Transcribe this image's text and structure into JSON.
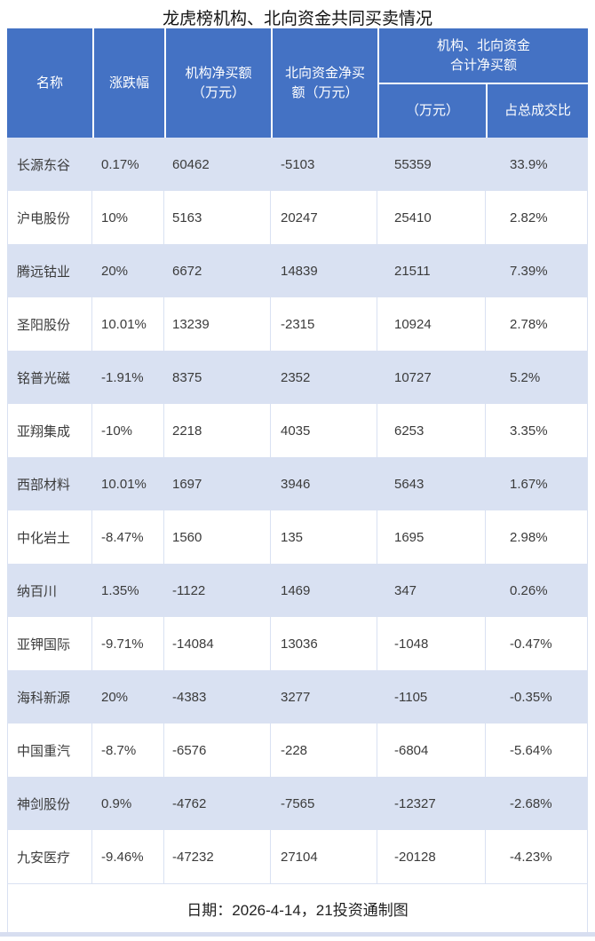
{
  "title": "龙虎榜机构、北向资金共同买卖情况",
  "table": {
    "columns": {
      "name": "名称",
      "change": "涨跌幅",
      "inst_net": "机构净买额\n（万元）",
      "north_net": "北向资金净买\n额（万元）",
      "combined_group": "机构、北向资金\n合计净买额",
      "combined_wan": "（万元）",
      "combined_pct": "占总成交比"
    },
    "rows": [
      {
        "name": "长源东谷",
        "change": "0.17%",
        "inst_net": "60462",
        "north_net": "-5103",
        "combined": "55359",
        "pct": "33.9%"
      },
      {
        "name": "沪电股份",
        "change": "10%",
        "inst_net": "5163",
        "north_net": "20247",
        "combined": "25410",
        "pct": "2.82%"
      },
      {
        "name": "腾远钴业",
        "change": "20%",
        "inst_net": "6672",
        "north_net": "14839",
        "combined": "21511",
        "pct": "7.39%"
      },
      {
        "name": "圣阳股份",
        "change": "10.01%",
        "inst_net": "13239",
        "north_net": "-2315",
        "combined": "10924",
        "pct": "2.78%"
      },
      {
        "name": "铭普光磁",
        "change": "-1.91%",
        "inst_net": "8375",
        "north_net": "2352",
        "combined": "10727",
        "pct": "5.2%"
      },
      {
        "name": "亚翔集成",
        "change": "-10%",
        "inst_net": "2218",
        "north_net": "4035",
        "combined": "6253",
        "pct": "3.35%"
      },
      {
        "name": "西部材料",
        "change": "10.01%",
        "inst_net": "1697",
        "north_net": "3946",
        "combined": "5643",
        "pct": "1.67%"
      },
      {
        "name": "中化岩土",
        "change": "-8.47%",
        "inst_net": "1560",
        "north_net": "135",
        "combined": "1695",
        "pct": "2.98%"
      },
      {
        "name": "纳百川",
        "change": "1.35%",
        "inst_net": "-1122",
        "north_net": "1469",
        "combined": "347",
        "pct": "0.26%"
      },
      {
        "name": "亚钾国际",
        "change": "-9.71%",
        "inst_net": "-14084",
        "north_net": "13036",
        "combined": "-1048",
        "pct": "-0.47%"
      },
      {
        "name": "海科新源",
        "change": "20%",
        "inst_net": "-4383",
        "north_net": "3277",
        "combined": "-1105",
        "pct": "-0.35%"
      },
      {
        "name": "中国重汽",
        "change": "-8.7%",
        "inst_net": "-6576",
        "north_net": "-228",
        "combined": "-6804",
        "pct": "-5.64%"
      },
      {
        "name": "神剑股份",
        "change": "0.9%",
        "inst_net": "-4762",
        "north_net": "-7565",
        "combined": "-12327",
        "pct": "-2.68%"
      },
      {
        "name": "九安医疗",
        "change": "-9.46%",
        "inst_net": "-47232",
        "north_net": "27104",
        "combined": "-20128",
        "pct": "-4.23%"
      }
    ]
  },
  "footer": "日期：2026-4-14，21投资通制图",
  "colors": {
    "header_bg": "#4472C4",
    "band_bg": "#D9E1F2",
    "header_text": "#FFFFFF",
    "body_text": "#3B3B3B"
  },
  "chart_data": {
    "type": "table",
    "title": "龙虎榜机构、北向资金共同买卖情况",
    "columns": [
      "名称",
      "涨跌幅",
      "机构净买额（万元）",
      "北向资金净买额（万元）",
      "机构、北向资金合计净买额（万元）",
      "机构、北向资金合计净买额占总成交比"
    ],
    "rows": [
      [
        "长源东谷",
        "0.17%",
        60462,
        -5103,
        55359,
        "33.9%"
      ],
      [
        "沪电股份",
        "10%",
        5163,
        20247,
        25410,
        "2.82%"
      ],
      [
        "腾远钴业",
        "20%",
        6672,
        14839,
        21511,
        "7.39%"
      ],
      [
        "圣阳股份",
        "10.01%",
        13239,
        -2315,
        10924,
        "2.78%"
      ],
      [
        "铭普光磁",
        "-1.91%",
        8375,
        2352,
        10727,
        "5.2%"
      ],
      [
        "亚翔集成",
        "-10%",
        2218,
        4035,
        6253,
        "3.35%"
      ],
      [
        "西部材料",
        "10.01%",
        1697,
        3946,
        5643,
        "1.67%"
      ],
      [
        "中化岩土",
        "-8.47%",
        1560,
        135,
        1695,
        "2.98%"
      ],
      [
        "纳百川",
        "1.35%",
        -1122,
        1469,
        347,
        "0.26%"
      ],
      [
        "亚钾国际",
        "-9.71%",
        -14084,
        13036,
        -1048,
        "-0.47%"
      ],
      [
        "海科新源",
        "20%",
        -4383,
        3277,
        -1105,
        "-0.35%"
      ],
      [
        "中国重汽",
        "-8.7%",
        -6576,
        -228,
        -6804,
        "-5.64%"
      ],
      [
        "神剑股份",
        "0.9%",
        -4762,
        -7565,
        -12327,
        "-2.68%"
      ],
      [
        "九安医疗",
        "-9.46%",
        -47232,
        27104,
        -20128,
        "-4.23%"
      ]
    ],
    "footnote": "日期：2026-4-14，21投资通制图",
    "layout": {
      "banded_rows": true,
      "header_rows": 2,
      "merged_group_header_cols": [
        5,
        6
      ]
    }
  }
}
